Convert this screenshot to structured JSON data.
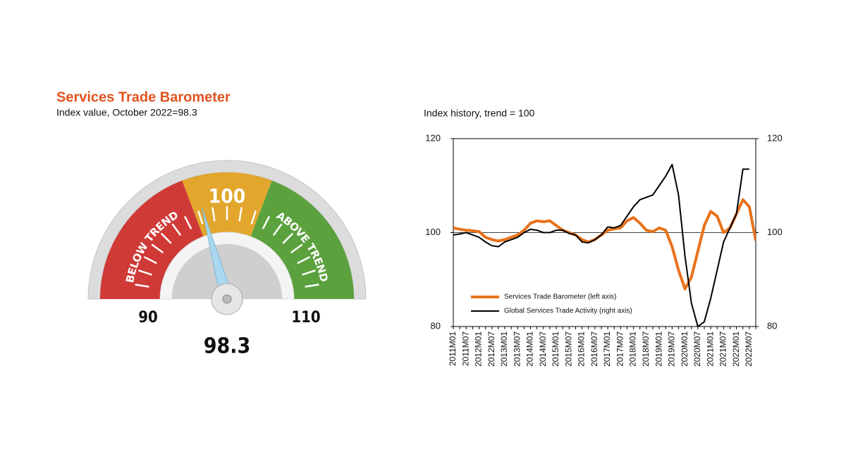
{
  "chart_data": [
    {
      "type": "gauge",
      "title": "Services Trade Barometer",
      "subtitle": "Index value, October 2022=98.3",
      "min": 90,
      "max": 110,
      "value": 98.3,
      "ticks": [
        90,
        100,
        110
      ],
      "needle_color": "#a9d8f0",
      "bands": [
        {
          "label": "BELOW TREND",
          "from": 90,
          "to": 97.7,
          "color": "#cf3a37"
        },
        {
          "from": 97.7,
          "to": 102.3,
          "color": "#e2a62c"
        },
        {
          "label": "ABOVE TREND",
          "from": 102.3,
          "to": 110,
          "color": "#5ba13d"
        }
      ]
    },
    {
      "type": "line",
      "subtitle": "Index history, trend = 100",
      "categories": [
        "2011M01",
        null,
        "2011M07",
        null,
        "2012M01",
        null,
        "2012M07",
        null,
        "2013M01",
        null,
        "2013M07",
        null,
        "2014M01",
        null,
        "2014M07",
        null,
        "2015M01",
        null,
        "2015M07",
        null,
        "2016M01",
        null,
        "2016M07",
        null,
        "2017M01",
        null,
        "2017M07",
        null,
        "2018M01",
        null,
        "2018M07",
        null,
        "2019M01",
        null,
        "2019M07",
        null,
        "2020M01",
        null,
        "2020M07",
        null,
        "2021M01",
        null,
        "2021M07",
        null,
        "2022M01",
        null,
        "2022M07",
        null
      ],
      "series": [
        {
          "name": "Services Trade Barometer (left axis)",
          "color": "#e8721c",
          "values": [
            101,
            100.7,
            100.5,
            100.4,
            100.2,
            99,
            98.5,
            98.2,
            98.5,
            99,
            99.5,
            100.5,
            102,
            102.5,
            102.3,
            102.5,
            101.5,
            100.5,
            100,
            99.5,
            98.5,
            98,
            98.5,
            99.5,
            100.5,
            100.8,
            101,
            102.5,
            103.2,
            102,
            100.5,
            100.2,
            101,
            100.5,
            97,
            92,
            88,
            90.5,
            96,
            101.5,
            104.5,
            103.5,
            100,
            101,
            104,
            107,
            105.5,
            98.3
          ]
        },
        {
          "name": "Global Services Trade Activity (right axis)",
          "color": "#000000",
          "axis": "y2",
          "values": [
            99.5,
            99.7,
            100,
            99.5,
            99,
            98,
            97.2,
            97,
            98,
            98.5,
            99,
            100,
            100.7,
            100.5,
            100,
            100,
            100.5,
            100.5,
            99.8,
            99.5,
            98,
            97.8,
            98.5,
            99.5,
            101.2,
            101,
            101.5,
            103.5,
            105.5,
            107,
            107.5,
            108,
            110,
            112,
            114.5,
            108,
            95,
            85,
            80,
            81,
            86,
            92,
            98,
            101,
            104,
            113.5,
            113.5,
            null
          ]
        }
      ],
      "ylim": [
        80,
        120
      ],
      "yticks": [
        80,
        100,
        120
      ],
      "y2lim": [
        80,
        120
      ],
      "y2ticks": [
        80,
        100,
        120
      ],
      "reference_line": 100,
      "legend": "lower left"
    }
  ]
}
